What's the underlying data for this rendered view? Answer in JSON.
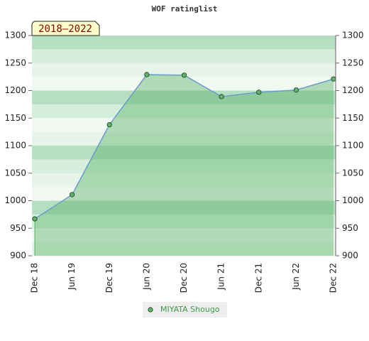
{
  "chart_data": {
    "type": "line",
    "title": "WOF ratinglist",
    "annotation": "2018–2022",
    "categories": [
      "Dec 18",
      "Jun 19",
      "Dec 19",
      "Jun 20",
      "Dec 20",
      "Jun 21",
      "Dec 21",
      "Jun 22",
      "Dec 22"
    ],
    "series": [
      {
        "name": "MIYATA Shougo",
        "color": "#5fb36a",
        "line_color": "#6a9ccc",
        "values": [
          967,
          1011,
          1138,
          1229,
          1228,
          1189,
          1197,
          1201,
          1221
        ]
      }
    ],
    "ylim": [
      900,
      1300
    ],
    "yticks": [
      900,
      950,
      1000,
      1050,
      1100,
      1150,
      1200,
      1250,
      1300
    ],
    "y2lim": [
      900,
      1300
    ],
    "y2ticks": [
      900,
      950,
      1000,
      1050,
      1100,
      1150,
      1200,
      1250,
      1300
    ]
  }
}
